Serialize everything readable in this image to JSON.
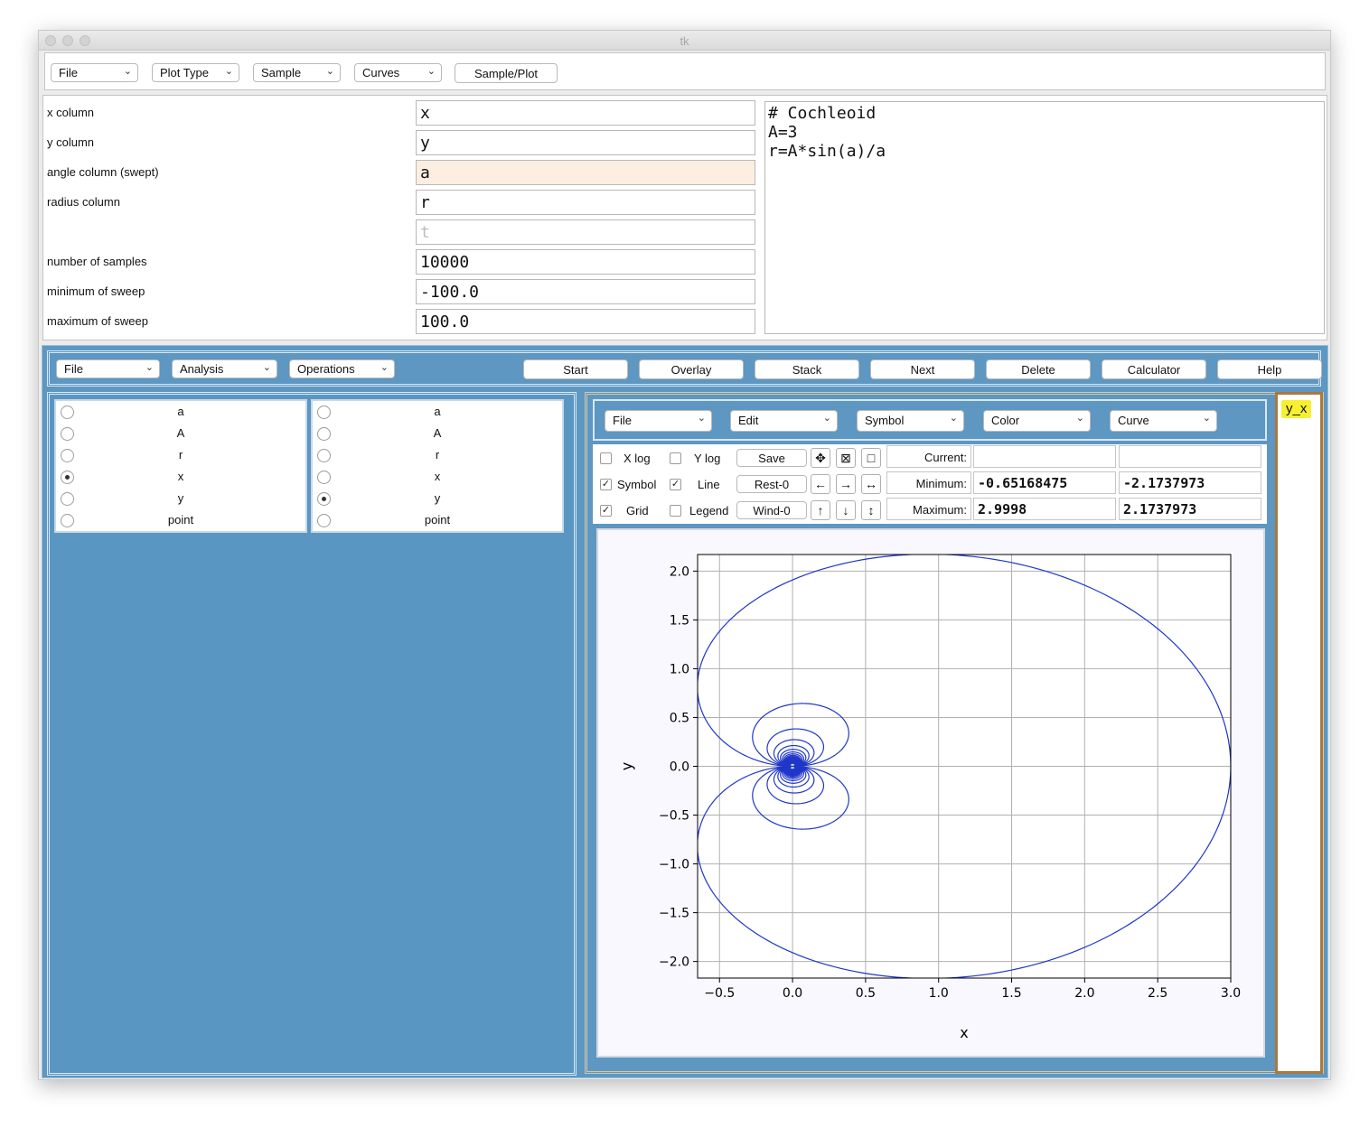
{
  "window": {
    "title": "tk"
  },
  "top_toolbar": {
    "menus": [
      "File",
      "Plot Type",
      "Sample",
      "Curves"
    ],
    "sample_plot_label": "Sample/Plot"
  },
  "params": {
    "rows": [
      {
        "label": "x column",
        "value": "x"
      },
      {
        "label": "y column",
        "value": "y"
      },
      {
        "label": "angle column (swept)",
        "value": "a"
      },
      {
        "label": "radius column",
        "value": "r"
      },
      {
        "label": "",
        "value": "t"
      },
      {
        "label": "number of samples",
        "value": "10000"
      },
      {
        "label": "minimum of sweep",
        "value": "-100.0"
      },
      {
        "label": "maximum of sweep",
        "value": "100.0"
      }
    ],
    "code": "# Cochleoid\nA=3\nr=A*sin(a)/a"
  },
  "main_toolbar": {
    "menus": [
      "File",
      "Analysis",
      "Operations"
    ],
    "buttons": [
      "Start",
      "Overlay",
      "Stack",
      "Next",
      "Delete",
      "Calculator",
      "Help"
    ]
  },
  "columns_x": {
    "items": [
      "a",
      "A",
      "r",
      "x",
      "y",
      "point"
    ],
    "selected": "x"
  },
  "columns_y": {
    "items": [
      "a",
      "A",
      "r",
      "x",
      "y",
      "point"
    ],
    "selected": "y"
  },
  "plot_toolbar": {
    "menus": [
      "File",
      "Edit",
      "Symbol",
      "Color",
      "Curve"
    ]
  },
  "plot_controls": {
    "xlog": {
      "label": "X log",
      "checked": false
    },
    "ylog": {
      "label": "Y log",
      "checked": false
    },
    "symbol": {
      "label": "Symbol",
      "checked": true
    },
    "line": {
      "label": "Line",
      "checked": true
    },
    "grid": {
      "label": "Grid",
      "checked": true
    },
    "legend": {
      "label": "Legend",
      "checked": false
    },
    "save_label": "Save",
    "rest_label": "Rest-0",
    "wind_label": "Wind-0",
    "current_label": "Current:",
    "minimum_label": "Minimum:",
    "maximum_label": "Maximum:",
    "current_x": "",
    "current_y": "",
    "min_x": "-0.65168475",
    "min_y": "-2.1737973",
    "max_x": "2.9998",
    "max_y": "2.1737973"
  },
  "curve_tag": "y_x",
  "chart_data": {
    "type": "line",
    "title": "",
    "xlabel": "x",
    "ylabel": "y",
    "xlim": [
      -0.65,
      3.0
    ],
    "ylim": [
      -2.17,
      2.17
    ],
    "xticks": [
      -0.5,
      0.0,
      0.5,
      1.0,
      1.5,
      2.0,
      2.5,
      3.0
    ],
    "yticks": [
      -2.0,
      -1.5,
      -1.0,
      -0.5,
      0.0,
      0.5,
      1.0,
      1.5,
      2.0
    ],
    "grid": true,
    "series": [
      {
        "equation": "r=A*sin(a)/a",
        "A": 3,
        "sweep": [
          -100.0,
          100.0
        ],
        "samples": 10000,
        "color": "#1f36c9"
      }
    ]
  }
}
